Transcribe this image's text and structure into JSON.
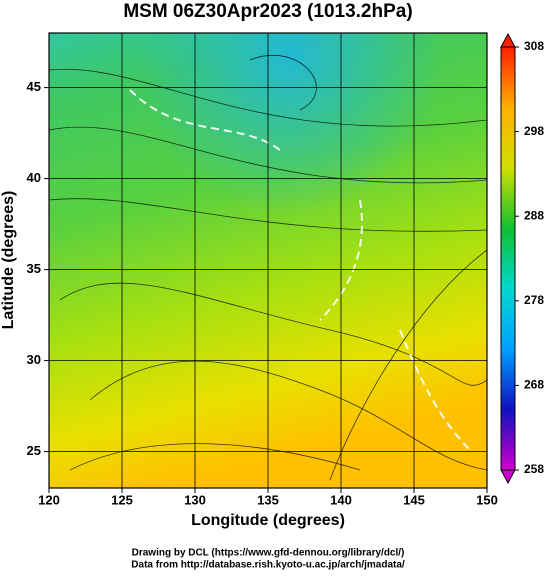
{
  "chart_data": {
    "type": "map",
    "title": "MSM 06Z30Apr2023 (1013.2hPa)",
    "xlabel": "Longitude (degrees)",
    "ylabel": "Latitude  (degrees)",
    "xlim": [
      120,
      150
    ],
    "xticks": [
      120,
      125,
      130,
      135,
      140,
      145,
      150
    ],
    "ylim": [
      23,
      48
    ],
    "yticks": [
      25,
      30,
      35,
      40,
      45
    ],
    "grid": true,
    "colorbar": {
      "lim": [
        258,
        308
      ],
      "ticks": [
        258,
        268,
        278,
        288,
        298,
        308
      ],
      "colors": [
        "#d000d0",
        "#1010c0",
        "#00a0ff",
        "#00d8d0",
        "#10c030",
        "#d0e000",
        "#ffb000",
        "#ff2000"
      ]
    }
  },
  "footer": [
    "Drawing by DCL (https://www.gfd-dennou.org/library/dcl/)",
    "Data from http://database.rish.kyoto-u.ac.jp/arch/jmadata/"
  ]
}
